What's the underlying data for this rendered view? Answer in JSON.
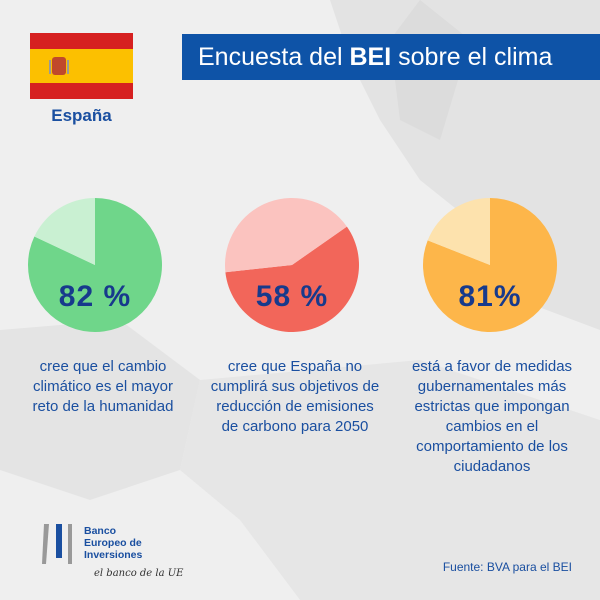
{
  "header": {
    "title_pre": "Encuesta del ",
    "title_bold": "BEI",
    "title_post": " sobre el clima"
  },
  "country": {
    "name": "España"
  },
  "stats": [
    {
      "value": 82,
      "label": "82 %",
      "description": "cree que el cambio climático es el mayor reto de la humanidad",
      "color": "#6fd68a",
      "rest_color": "#c9f0d2"
    },
    {
      "value": 58,
      "label": "58 %",
      "description": "cree que España no cumplirá sus objetivos de reducción de emisiones de carbono para 2050",
      "color": "#f2665a",
      "rest_color": "#fbc3bf"
    },
    {
      "value": 81,
      "label": "81%",
      "description": "está a favor de medidas gubernamentales más estrictas que impongan cambios en el comportamiento de los ciudadanos",
      "color": "#fdb64a",
      "rest_color": "#fde2ad"
    }
  ],
  "footer": {
    "logo_lines": [
      "Banco",
      "Europeo de",
      "Inversiones"
    ],
    "tagline": "el banco de la UE",
    "source": "Fuente: BVA para el BEI"
  }
}
